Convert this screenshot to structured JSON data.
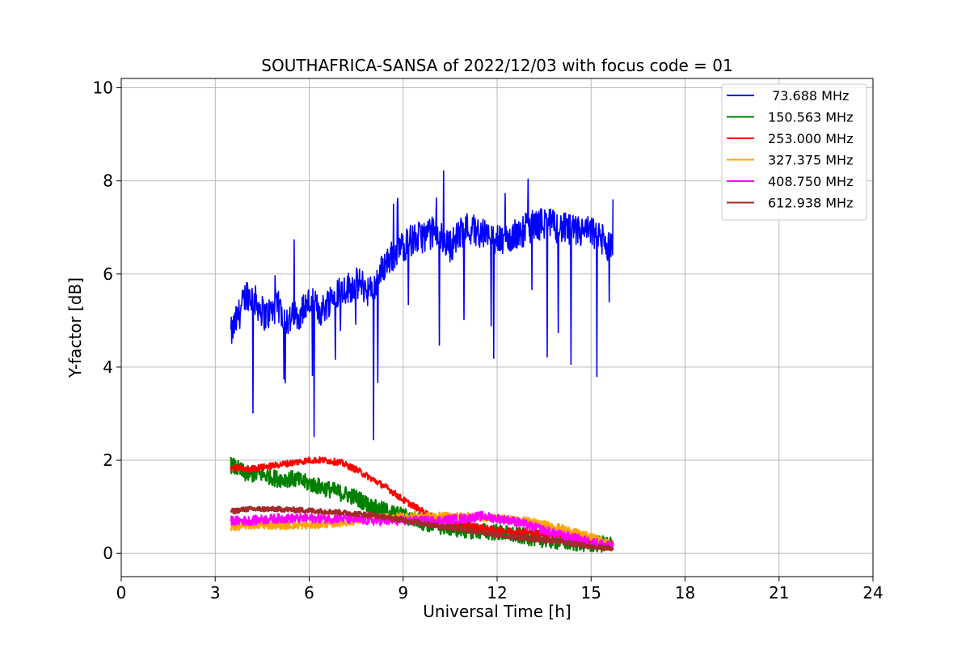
{
  "chart_data": {
    "type": "line",
    "title": "SOUTHAFRICA-SANSA of 2022/12/03 with focus code = 01",
    "xlabel": "Universal Time [h]",
    "ylabel": "Y-factor [dB]",
    "xlim": [
      0,
      24
    ],
    "ylim": [
      -0.5,
      10.2
    ],
    "xticks": [
      0,
      3,
      6,
      9,
      12,
      15,
      18,
      21,
      24
    ],
    "yticks": [
      0,
      2,
      4,
      6,
      8,
      10
    ],
    "xtick_labels": [
      "0",
      "3",
      "6",
      "9",
      "12",
      "15",
      "18",
      "21",
      "24"
    ],
    "ytick_labels": [
      "0",
      "2",
      "4",
      "6",
      "8",
      "10"
    ],
    "grid": true,
    "legend_position": "top-right",
    "series": [
      {
        "name": " 73.688 MHz",
        "color": "#0000ff",
        "noise": 0.35,
        "x": [
          3.5,
          3.8,
          4.0,
          4.3,
          4.6,
          5.0,
          5.3,
          5.6,
          6.0,
          6.4,
          6.8,
          7.2,
          7.6,
          8.0,
          8.4,
          8.8,
          9.2,
          9.6,
          10.0,
          10.5,
          11.0,
          11.5,
          12.0,
          12.5,
          13.0,
          13.5,
          14.0,
          14.5,
          15.0,
          15.4,
          15.7
        ],
        "y": [
          4.7,
          5.2,
          5.6,
          5.4,
          5.1,
          5.3,
          5.0,
          5.1,
          5.4,
          5.2,
          5.6,
          5.7,
          5.8,
          5.6,
          6.2,
          6.5,
          6.7,
          6.8,
          6.9,
          6.6,
          7.0,
          6.9,
          6.7,
          6.8,
          7.0,
          7.1,
          7.0,
          6.9,
          6.9,
          6.7,
          6.5
        ]
      },
      {
        "name": "150.563 MHz",
        "color": "#008000",
        "noise": 0.18,
        "x": [
          3.5,
          4.0,
          4.5,
          5.0,
          5.5,
          6.0,
          6.5,
          7.0,
          7.5,
          8.0,
          8.5,
          9.0,
          9.5,
          10.0,
          10.5,
          11.0,
          12.0,
          13.0,
          14.0,
          15.0,
          15.7
        ],
        "y": [
          1.9,
          1.7,
          1.7,
          1.6,
          1.6,
          1.5,
          1.4,
          1.3,
          1.2,
          1.0,
          0.9,
          0.8,
          0.7,
          0.6,
          0.55,
          0.5,
          0.45,
          0.35,
          0.25,
          0.2,
          0.2
        ]
      },
      {
        "name": "253.000 MHz",
        "color": "#ff0000",
        "noise": 0.07,
        "x": [
          3.5,
          4.0,
          4.5,
          5.0,
          5.5,
          6.0,
          6.5,
          7.0,
          7.5,
          8.0,
          8.5,
          9.0,
          9.5,
          10.0,
          11.0,
          12.0,
          13.0,
          14.0,
          15.0,
          15.7
        ],
        "y": [
          1.85,
          1.8,
          1.85,
          1.9,
          1.95,
          2.0,
          2.0,
          1.95,
          1.8,
          1.6,
          1.4,
          1.15,
          0.95,
          0.75,
          0.6,
          0.5,
          0.45,
          0.4,
          0.25,
          0.15
        ]
      },
      {
        "name": "327.375 MHz",
        "color": "#ffa500",
        "noise": 0.08,
        "x": [
          3.5,
          4.0,
          5.0,
          6.0,
          7.0,
          8.0,
          9.0,
          10.0,
          11.0,
          12.0,
          13.0,
          14.0,
          15.0,
          15.7
        ],
        "y": [
          0.55,
          0.6,
          0.6,
          0.6,
          0.65,
          0.75,
          0.8,
          0.8,
          0.8,
          0.75,
          0.7,
          0.55,
          0.35,
          0.2
        ]
      },
      {
        "name": "408.750 MHz",
        "color": "#ff00ff",
        "noise": 0.1,
        "x": [
          3.5,
          4.0,
          5.0,
          6.0,
          7.0,
          8.0,
          9.0,
          10.0,
          11.0,
          11.5,
          12.0,
          12.5,
          13.0,
          14.0,
          15.0,
          15.7
        ],
        "y": [
          0.7,
          0.7,
          0.75,
          0.75,
          0.75,
          0.7,
          0.7,
          0.7,
          0.75,
          0.8,
          0.75,
          0.7,
          0.6,
          0.4,
          0.25,
          0.15
        ]
      },
      {
        "name": "612.938 MHz",
        "color": "#a52a2a",
        "noise": 0.05,
        "x": [
          3.5,
          4.0,
          5.0,
          6.0,
          7.0,
          8.0,
          9.0,
          10.0,
          11.0,
          12.0,
          13.0,
          14.0,
          15.0,
          15.7
        ],
        "y": [
          0.9,
          0.95,
          0.95,
          0.92,
          0.88,
          0.82,
          0.72,
          0.6,
          0.5,
          0.4,
          0.32,
          0.25,
          0.15,
          0.1
        ]
      }
    ]
  }
}
